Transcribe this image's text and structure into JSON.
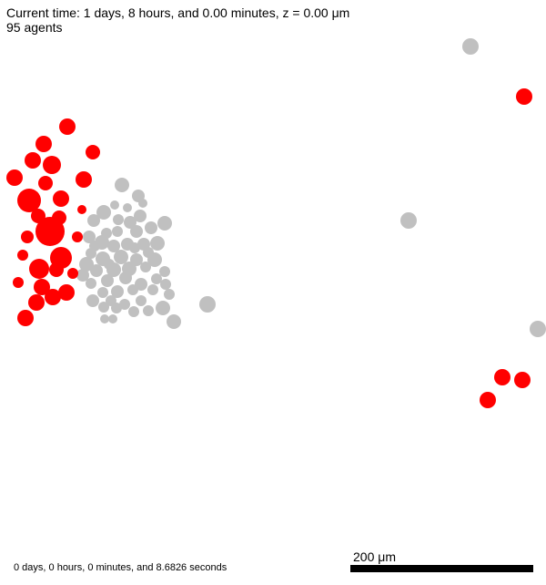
{
  "header": {
    "current_time": "Current time: 1 days, 8 hours, and 0.00 minutes, z = 0.00 μm",
    "agent_count": "95 agents"
  },
  "footer": {
    "elapsed": "0 days, 0 hours, 0 minutes, and 8.6826 seconds"
  },
  "scale_bar": {
    "label": "200 μm"
  },
  "colors": {
    "agent_red": "#ff0000",
    "agent_gray": "#c0c0c0",
    "background": "#ffffff"
  },
  "agents": {
    "red_count": 31,
    "gray_count": 64
  }
}
